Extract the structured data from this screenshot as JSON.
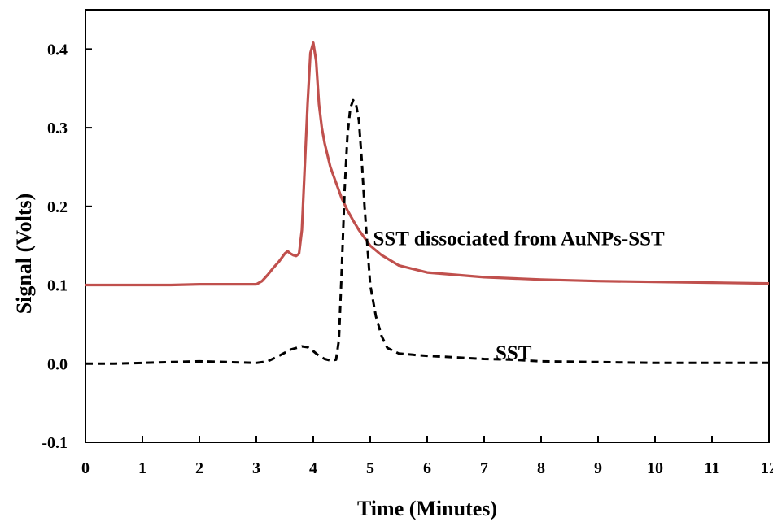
{
  "chart_data": {
    "type": "line",
    "xlabel": "Time (Minutes)",
    "ylabel": "Signal (Volts)",
    "xlim": [
      0,
      12
    ],
    "ylim": [
      -0.1,
      0.45
    ],
    "x_ticks": [
      0,
      1,
      2,
      3,
      4,
      5,
      6,
      7,
      8,
      9,
      10,
      11,
      12
    ],
    "y_ticks": [
      -0.1,
      0.0,
      0.1,
      0.2,
      0.3,
      0.4
    ],
    "y_tick_labels": [
      "-0.1",
      "0.0",
      "0.1",
      "0.2",
      "0.3",
      "0.4"
    ],
    "grid": false,
    "legend": "none",
    "annotations": [
      {
        "text": "SST dissociated from AuNPs-SST",
        "x": 5.05,
        "y": 0.16
      },
      {
        "text": "SST",
        "x": 7.2,
        "y": 0.015
      }
    ],
    "series": [
      {
        "color": "#c0504d",
        "style": "solid",
        "x": [
          0,
          0.5,
          1,
          1.5,
          2,
          2.5,
          3.0,
          3.1,
          3.2,
          3.3,
          3.4,
          3.5,
          3.55,
          3.6,
          3.65,
          3.7,
          3.75,
          3.8,
          3.85,
          3.9,
          3.95,
          4.0,
          4.05,
          4.1,
          4.15,
          4.2,
          4.3,
          4.4,
          4.5,
          4.6,
          4.7,
          4.8,
          5.0,
          5.2,
          5.5,
          6.0,
          6.5,
          7.0,
          8.0,
          9.0,
          10.0,
          11.0,
          12.0
        ],
        "y": [
          0.1,
          0.1,
          0.1,
          0.1,
          0.101,
          0.101,
          0.101,
          0.105,
          0.113,
          0.122,
          0.13,
          0.14,
          0.143,
          0.14,
          0.138,
          0.137,
          0.14,
          0.17,
          0.25,
          0.33,
          0.395,
          0.408,
          0.385,
          0.33,
          0.3,
          0.28,
          0.25,
          0.23,
          0.21,
          0.195,
          0.182,
          0.17,
          0.15,
          0.138,
          0.125,
          0.116,
          0.113,
          0.11,
          0.107,
          0.105,
          0.104,
          0.103,
          0.102
        ]
      },
      {
        "color": "#000000",
        "style": "dashed",
        "x": [
          0,
          0.5,
          1,
          1.5,
          2,
          2.5,
          3.0,
          3.2,
          3.4,
          3.6,
          3.8,
          3.9,
          4.0,
          4.1,
          4.2,
          4.3,
          4.4,
          4.45,
          4.5,
          4.55,
          4.6,
          4.65,
          4.7,
          4.75,
          4.8,
          4.85,
          4.9,
          4.95,
          5.0,
          5.1,
          5.2,
          5.3,
          5.5,
          5.8,
          6.0,
          6.5,
          7.0,
          7.5,
          8.0,
          9.0,
          10.0,
          11.0,
          12.0
        ],
        "y": [
          0.0,
          0.0,
          0.001,
          0.002,
          0.003,
          0.002,
          0.001,
          0.003,
          0.01,
          0.018,
          0.022,
          0.021,
          0.016,
          0.01,
          0.006,
          0.004,
          0.005,
          0.03,
          0.12,
          0.22,
          0.29,
          0.325,
          0.335,
          0.33,
          0.31,
          0.26,
          0.2,
          0.15,
          0.1,
          0.06,
          0.035,
          0.02,
          0.013,
          0.011,
          0.01,
          0.008,
          0.006,
          0.005,
          0.003,
          0.002,
          0.001,
          0.001,
          0.001
        ]
      }
    ]
  }
}
